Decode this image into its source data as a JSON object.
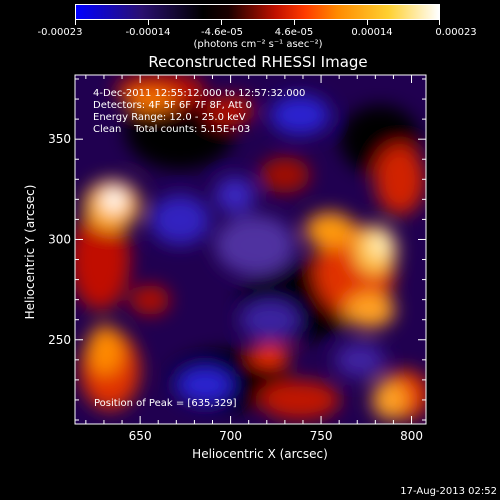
{
  "colorbar": {
    "tick_labels": [
      "-0.00023",
      "-0.00014",
      "-4.6e-05",
      "4.6e-05",
      "0.00014",
      "0.00023"
    ],
    "units": "(photons cm⁻² s⁻¹ asec⁻²)",
    "colors": [
      "#0000ff",
      "#000000",
      "#c01000",
      "#ff8a00",
      "#ffd030",
      "#ffffff"
    ]
  },
  "title": "Reconstructed RHESSI Image",
  "info": {
    "time_range": "4-Dec-2011 12:55:12.000 to 12:57:32.000",
    "detectors": "Detectors: 4F 5F 6F 7F 8F, Att 0",
    "energy": "Energy Range: 12.0 - 25.0 keV",
    "clean": "Clean    Total counts: 5.15E+03",
    "peak": "Position of Peak = [635,329]"
  },
  "axes": {
    "xlabel": "Heliocentric X (arcsec)",
    "ylabel": "Heliocentric Y (arcsec)",
    "xlim": [
      614,
      808
    ],
    "ylim": [
      208,
      382
    ],
    "x_ticks": [
      650,
      700,
      750,
      800
    ],
    "y_ticks": [
      250,
      300,
      350
    ],
    "x_tick_labels": [
      "650",
      "700",
      "750",
      "800"
    ],
    "y_tick_labels": [
      "250",
      "300",
      "350"
    ]
  },
  "timestamp": "17-Aug-2013 02:52"
}
